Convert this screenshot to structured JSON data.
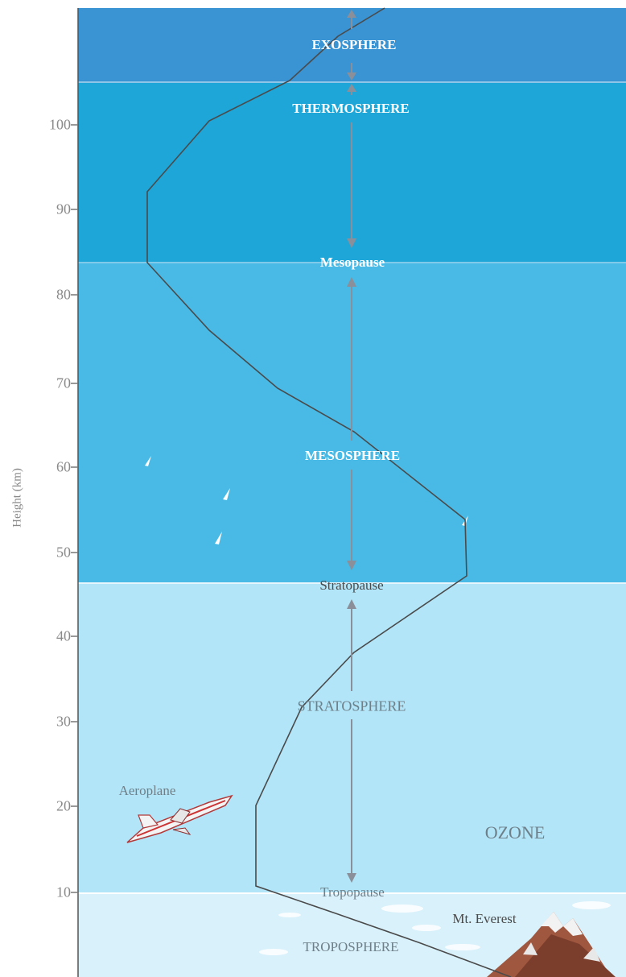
{
  "yaxis": {
    "label": "Height (km)",
    "ticks": [
      "100",
      "90",
      "80",
      "70",
      "60",
      "50",
      "40",
      "30",
      "20",
      "10"
    ]
  },
  "layers": {
    "exosphere": "EXOSPHERE",
    "thermosphere": "THERMOSPHERE",
    "mesopause": "Mesopause",
    "mesosphere": "MESOSPHERE",
    "stratopause": "Stratopause",
    "stratosphere": "STRATOSPHERE",
    "tropopause": "Tropopause",
    "troposphere": "TROPOSPHERE"
  },
  "labels": {
    "aeroplane": "Aeroplane",
    "ozone": "OZONE",
    "everest": "Mt. Everest"
  },
  "colors": {
    "exosphere": "#3a93d2",
    "thermosphere": "#1ea6d8",
    "mesosphere": "#49bae6",
    "stratosphere": "#b2e5f8",
    "troposphere": "#d9f1fb",
    "curve": "#4a4a4a",
    "arrow": "#8a8f99"
  }
}
